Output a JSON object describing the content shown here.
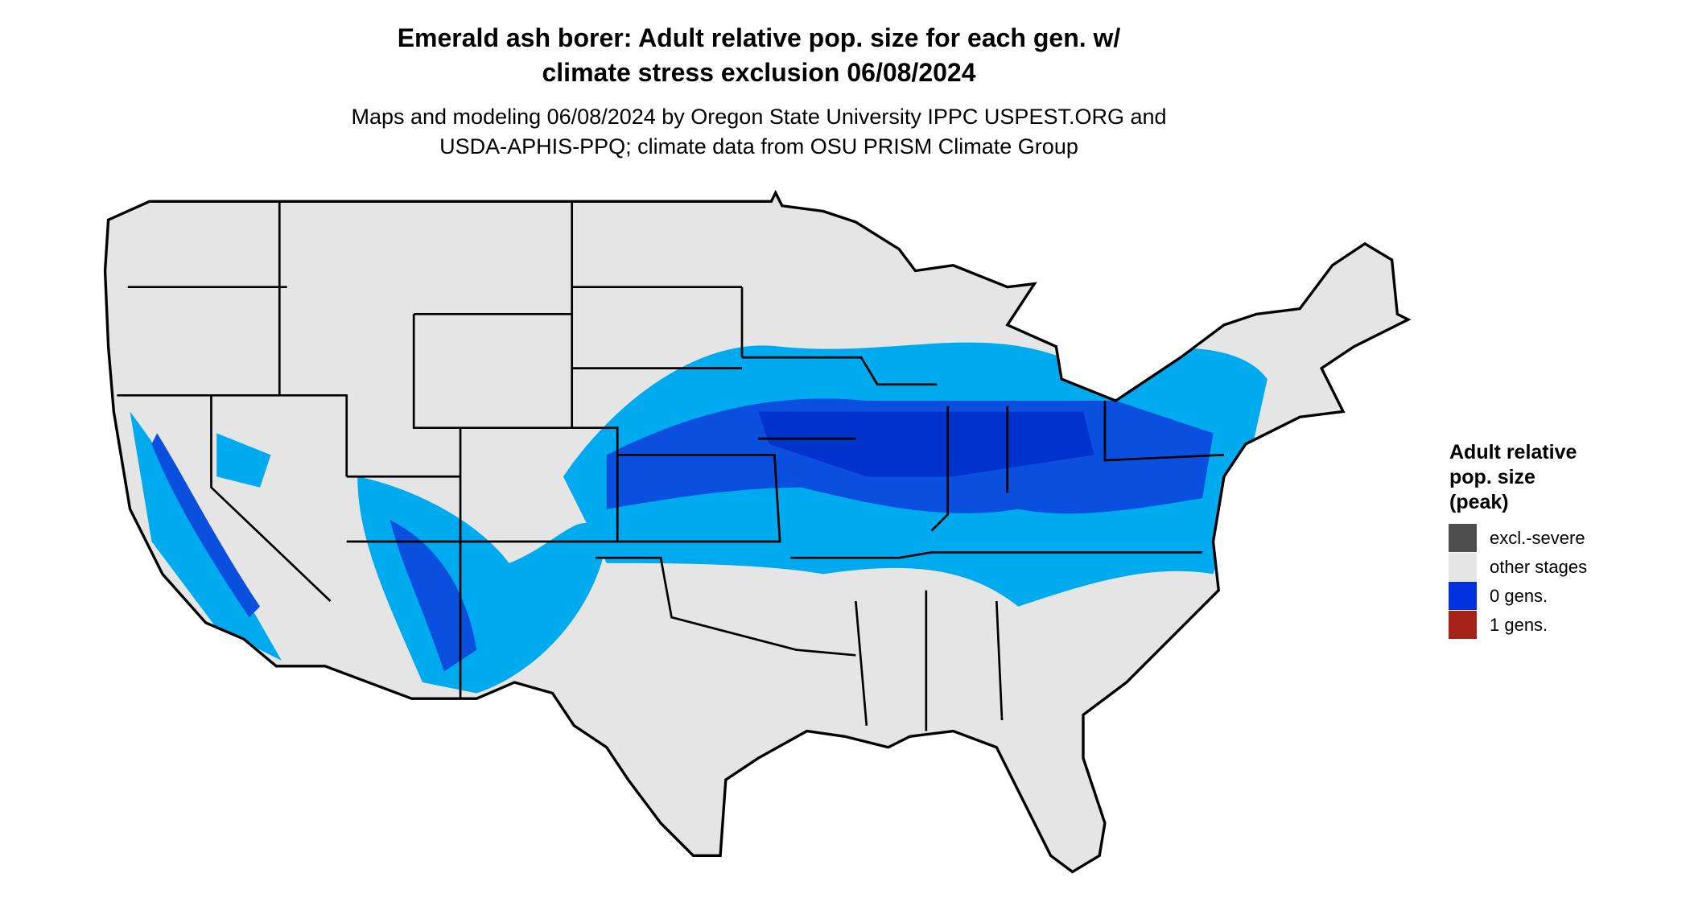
{
  "header": {
    "title_lines": [
      "Emerald ash borer: Adult relative pop. size for each gen. w/",
      "climate stress exclusion 06/08/2024"
    ],
    "subtitle_lines": [
      "Maps and modeling 06/08/2024 by Oregon State University IPPC USPEST.ORG and",
      "USDA-APHIS-PPQ; climate data from OSU PRISM Climate Group"
    ]
  },
  "legend": {
    "title_lines": [
      "Adult relative",
      "pop. size",
      "(peak)"
    ],
    "items": [
      {
        "label": "excl.-severe",
        "color": "#4d4d4d"
      },
      {
        "label": "other stages",
        "color": "#e5e5e5"
      },
      {
        "label": "0 gens.",
        "color": "#0033dd"
      },
      {
        "label": "1 gens.",
        "color": "#a52218"
      }
    ]
  }
}
